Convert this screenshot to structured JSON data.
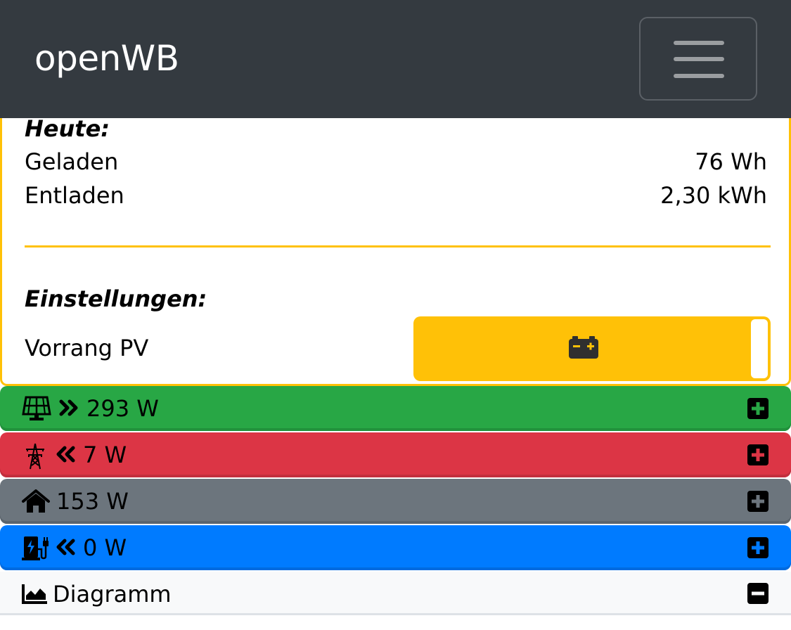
{
  "colors": {
    "navbar": "#343a40",
    "battery_accent": "#ffc107",
    "pv": "#28a745",
    "grid": "#dc3545",
    "house": "#6c757d",
    "charge": "#007bff",
    "diagram": "#f8f9fa"
  },
  "navbar": {
    "brand": "openWB",
    "menu_icon": "hamburger-icon"
  },
  "battery_card": {
    "today_heading": "Heute:",
    "charged_label": "Geladen",
    "charged_value": "76 Wh",
    "discharged_label": "Entladen",
    "discharged_value": "2,30 kWh",
    "settings_heading": "Einstellungen:",
    "priority_label": "Vorrang PV",
    "priority_icon": "battery-icon"
  },
  "status_rows": {
    "pv": {
      "icon": "solar-panel-icon",
      "direction_icon": "angles-right-icon",
      "value": "293 W",
      "toggle_icon": "plus-square-icon"
    },
    "grid": {
      "icon": "power-tower-icon",
      "direction_icon": "angles-left-icon",
      "value": "7 W",
      "toggle_icon": "plus-square-icon"
    },
    "house": {
      "icon": "house-icon",
      "value": "153 W",
      "toggle_icon": "plus-square-icon"
    },
    "charge": {
      "icon": "charging-station-icon",
      "direction_icon": "angles-left-icon",
      "value": "0 W",
      "toggle_icon": "plus-square-icon"
    },
    "diagram": {
      "icon": "chart-area-icon",
      "label": "Diagramm",
      "toggle_icon": "minus-square-icon"
    }
  }
}
